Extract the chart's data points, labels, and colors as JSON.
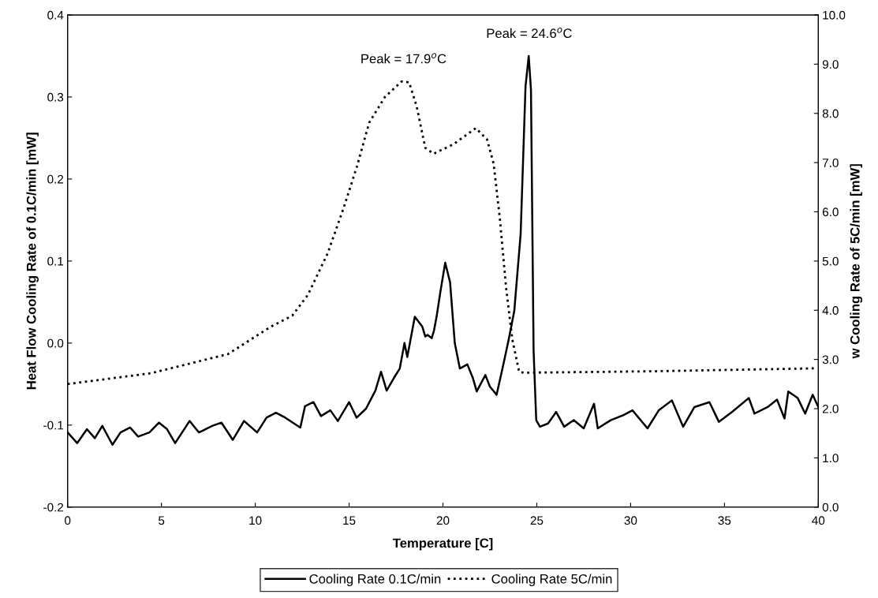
{
  "chart_data": {
    "type": "line",
    "xlabel": "Temperature [C]",
    "ylabel": "Heat Flow Cooling Rate of 0.1C/min [mW]",
    "y2label": "w Cooling Rate of 5C/min [mW]",
    "xlim": [
      0,
      40
    ],
    "xticks": [
      0,
      5,
      10,
      15,
      20,
      25,
      30,
      35,
      40
    ],
    "ylim": [
      -0.2,
      0.4
    ],
    "yticks": [
      {
        "value": -0.2,
        "label": "-0.2"
      },
      {
        "value": -0.1,
        "label": "-0.1"
      },
      {
        "value": 0,
        "label": "0.0"
      },
      {
        "value": 0.1,
        "label": "0.1"
      },
      {
        "value": 0.2,
        "label": "0.2"
      },
      {
        "value": 0.3,
        "label": "0.3"
      },
      {
        "value": 0.4,
        "label": "0.4"
      }
    ],
    "y2lim": [
      0,
      10
    ],
    "y2ticks": [
      {
        "value": 0,
        "label": "0.0"
      },
      {
        "value": 1,
        "label": "1.0"
      },
      {
        "value": 2,
        "label": "2.0"
      },
      {
        "value": 3,
        "label": "3.0"
      },
      {
        "value": 4,
        "label": "4.0"
      },
      {
        "value": 5,
        "label": "5.0"
      },
      {
        "value": 6,
        "label": "6.0"
      },
      {
        "value": 7,
        "label": "7.0"
      },
      {
        "value": 8,
        "label": "8.0"
      },
      {
        "value": 9,
        "label": "9.0"
      },
      {
        "value": 10,
        "label": "10.0"
      }
    ],
    "grid": false,
    "legend": "bottom",
    "marker": "none",
    "annotations": [
      {
        "text": "Peak = 17.9$^{o}$C",
        "x": 17.9,
        "y": 0.319
      },
      {
        "text": "Peak = 24.6$^{o}$C",
        "x": 24.6,
        "y": 0.35
      }
    ],
    "series": [
      {
        "name": "Cooling Rate 0.1C/min",
        "color": "#000000",
        "line_style": "solid",
        "x": [
          0,
          0.51,
          1.03,
          1.45,
          1.85,
          2.39,
          2.82,
          3.33,
          3.76,
          4.36,
          4.87,
          5.3,
          5.73,
          6.5,
          7.0,
          7.7,
          8.2,
          8.8,
          9.4,
          10.1,
          10.6,
          11.1,
          11.6,
          12.4,
          12.65,
          13.1,
          13.5,
          14.0,
          14.4,
          15.0,
          15.4,
          15.9,
          16.4,
          16.7,
          17.0,
          17.4,
          17.7,
          17.95,
          18.1,
          18.5,
          18.9,
          19.06,
          19.18,
          19.4,
          19.52,
          19.66,
          19.86,
          20.12,
          20.38,
          20.63,
          20.9,
          21.3,
          21.6,
          21.8,
          22.26,
          22.5,
          22.86,
          23.2,
          23.5,
          23.8,
          24.14,
          24.4,
          24.57,
          24.69,
          24.83,
          24.97,
          25.17,
          25.6,
          26.03,
          26.46,
          26.97,
          27.5,
          28.05,
          28.25,
          28.94,
          29.6,
          30.1,
          30.9,
          31.5,
          32.2,
          32.8,
          33.4,
          34.2,
          34.7,
          35.4,
          36.3,
          36.6,
          37.3,
          37.8,
          38.2,
          38.4,
          38.9,
          39.3,
          39.7,
          40.0
        ],
        "values": [
          -0.109,
          -0.122,
          -0.105,
          -0.116,
          -0.101,
          -0.124,
          -0.109,
          -0.103,
          -0.114,
          -0.109,
          -0.097,
          -0.105,
          -0.122,
          -0.095,
          -0.109,
          -0.101,
          -0.097,
          -0.118,
          -0.095,
          -0.109,
          -0.091,
          -0.085,
          -0.091,
          -0.103,
          -0.077,
          -0.072,
          -0.089,
          -0.082,
          -0.095,
          -0.072,
          -0.091,
          -0.08,
          -0.058,
          -0.035,
          -0.058,
          -0.042,
          -0.031,
          0.0,
          -0.017,
          0.032,
          0.02,
          0.008,
          0.01,
          0.006,
          0.015,
          0.032,
          0.062,
          0.098,
          0.074,
          0.0,
          -0.031,
          -0.026,
          -0.043,
          -0.059,
          -0.039,
          -0.053,
          -0.063,
          -0.028,
          0.004,
          0.039,
          0.133,
          0.313,
          0.35,
          0.309,
          -0.009,
          -0.094,
          -0.102,
          -0.098,
          -0.084,
          -0.102,
          -0.094,
          -0.104,
          -0.074,
          -0.104,
          -0.094,
          -0.088,
          -0.082,
          -0.104,
          -0.082,
          -0.07,
          -0.102,
          -0.078,
          -0.072,
          -0.096,
          -0.084,
          -0.067,
          -0.086,
          -0.078,
          -0.069,
          -0.092,
          -0.059,
          -0.067,
          -0.086,
          -0.063,
          -0.078
        ]
      },
      {
        "name": "Cooling Rate 5C/min",
        "color": "#000000",
        "line_style": "dotted",
        "axis": "y2",
        "x": [
          0,
          4.44,
          8.55,
          10.8,
          11.97,
          12.8,
          13.85,
          14.7,
          15.4,
          16.07,
          16.9,
          17.8,
          18.2,
          18.6,
          19.06,
          19.5,
          20.55,
          21.75,
          22.35,
          22.7,
          23.03,
          23.37,
          23.7,
          24.06,
          24.3,
          31.2,
          39.9
        ],
        "values": [
          2.5,
          2.72,
          3.11,
          3.66,
          3.89,
          4.31,
          5.15,
          6.07,
          6.9,
          7.81,
          8.33,
          8.65,
          8.63,
          8.14,
          7.3,
          7.18,
          7.37,
          7.7,
          7.47,
          6.98,
          5.87,
          4.44,
          3.4,
          2.75,
          2.73,
          2.76,
          2.82
        ]
      }
    ]
  }
}
